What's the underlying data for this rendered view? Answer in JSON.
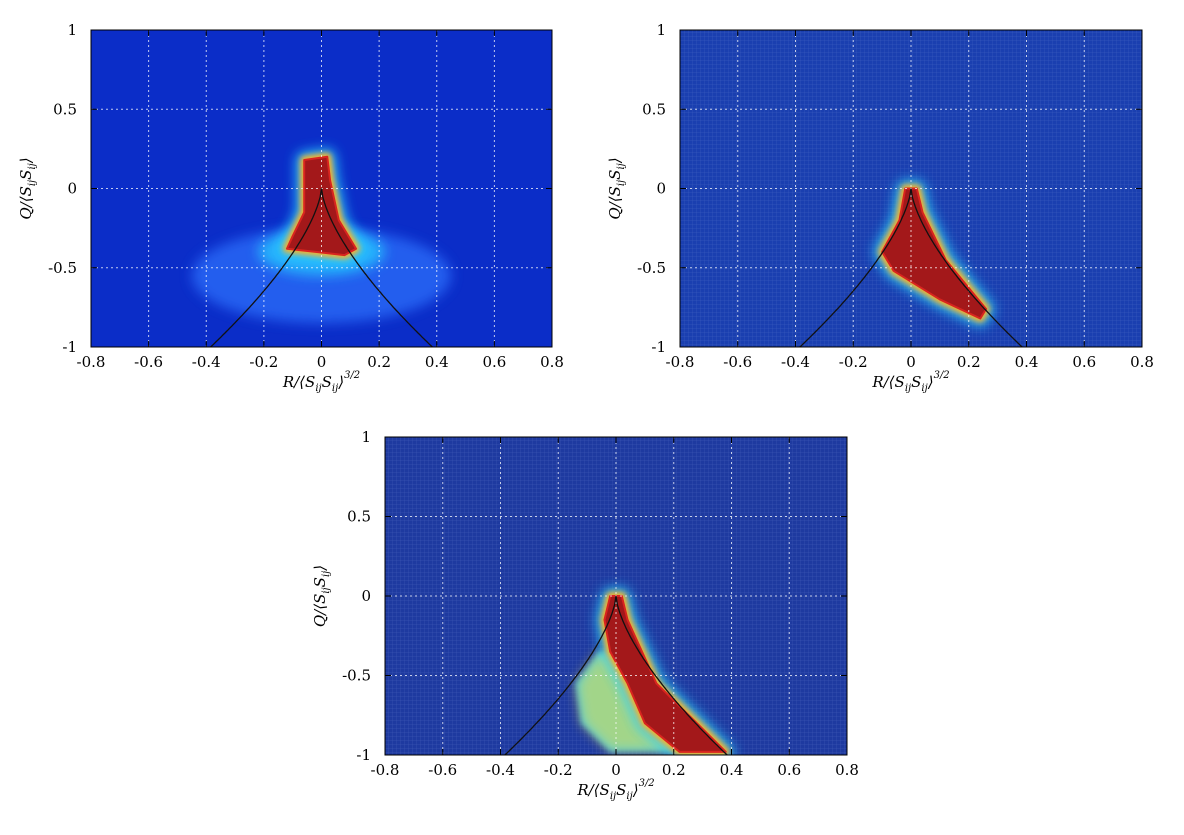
{
  "chart_data": [
    {
      "type": "heatmap",
      "panel": "top-left",
      "xlabel": "R/⟨S_ij S_ij⟩^{3/2}",
      "ylabel": "Q/⟨S_ij S_ij⟩",
      "xlim": [
        -0.8,
        0.8
      ],
      "ylim": [
        -1,
        1
      ],
      "xticks": [
        "-0.8",
        "-0.6",
        "-0.4",
        "-0.2",
        "0",
        "0.2",
        "0.4",
        "0.6",
        "0.8"
      ],
      "yticks": [
        "1",
        "0.5",
        "0",
        "-0.5",
        "-1"
      ],
      "grid": true,
      "colormap": "jet",
      "background_color": "#0b2dc8",
      "hot_region": [
        [
          -0.06,
          0.18
        ],
        [
          0.02,
          0.2
        ],
        [
          0.03,
          0.05
        ],
        [
          0.06,
          -0.2
        ],
        [
          0.12,
          -0.38
        ],
        [
          0.08,
          -0.42
        ],
        [
          -0.02,
          -0.4
        ],
        [
          -0.12,
          -0.38
        ],
        [
          -0.1,
          -0.3
        ],
        [
          -0.06,
          -0.15
        ]
      ],
      "curve": "discriminant Q = -(27/4)^{1/3} R^{2/3}"
    },
    {
      "type": "heatmap",
      "panel": "top-right",
      "xlabel": "R/⟨S_ij S_ij⟩^{3/2}",
      "ylabel": "Q/⟨S_ij S_ij⟩",
      "xlim": [
        -0.8,
        0.8
      ],
      "ylim": [
        -1,
        1
      ],
      "xticks": [
        "-0.8",
        "-0.6",
        "-0.4",
        "-0.2",
        "0",
        "0.2",
        "0.4",
        "0.6",
        "0.8"
      ],
      "yticks": [
        "1",
        "0.5",
        "0",
        "-0.5",
        "-1"
      ],
      "grid": true,
      "colormap": "jet",
      "background_color": "#1a3fb0",
      "hot_region": [
        [
          -0.02,
          0.0
        ],
        [
          0.02,
          0.0
        ],
        [
          0.04,
          -0.15
        ],
        [
          0.12,
          -0.45
        ],
        [
          0.26,
          -0.76
        ],
        [
          0.24,
          -0.82
        ],
        [
          0.1,
          -0.7
        ],
        [
          -0.06,
          -0.52
        ],
        [
          -0.1,
          -0.4
        ],
        [
          -0.04,
          -0.2
        ]
      ],
      "curve": "discriminant Q = -(27/4)^{1/3} R^{2/3}"
    },
    {
      "type": "heatmap",
      "panel": "bottom",
      "xlabel": "R/⟨S_ij S_ij⟩^{3/2}",
      "ylabel": "Q/⟨S_ij S_ij⟩",
      "xlim": [
        -0.8,
        0.8
      ],
      "ylim": [
        -1,
        1
      ],
      "xticks": [
        "-0.8",
        "-0.6",
        "-0.4",
        "-0.2",
        "0",
        "0.2",
        "0.4",
        "0.6",
        "0.8"
      ],
      "yticks": [
        "1",
        "0.5",
        "0",
        "-0.5",
        "-1"
      ],
      "grid": true,
      "colormap": "jet",
      "background_color": "#1e3aa0",
      "hot_region": [
        [
          -0.02,
          0.0
        ],
        [
          0.02,
          0.0
        ],
        [
          0.04,
          -0.15
        ],
        [
          0.14,
          -0.55
        ],
        [
          0.28,
          -0.8
        ],
        [
          0.38,
          -0.98
        ],
        [
          0.22,
          -0.98
        ],
        [
          0.1,
          -0.8
        ],
        [
          0.04,
          -0.55
        ],
        [
          -0.02,
          -0.35
        ],
        [
          -0.04,
          -0.15
        ]
      ],
      "warm_region": [
        [
          -0.06,
          -0.35
        ],
        [
          0.0,
          -0.35
        ],
        [
          0.08,
          -0.62
        ],
        [
          0.18,
          -0.85
        ],
        [
          0.2,
          -0.98
        ],
        [
          -0.02,
          -0.98
        ],
        [
          -0.12,
          -0.8
        ],
        [
          -0.14,
          -0.55
        ]
      ],
      "curve": "discriminant Q = -(27/4)^{1/3} R^{2/3}"
    }
  ]
}
